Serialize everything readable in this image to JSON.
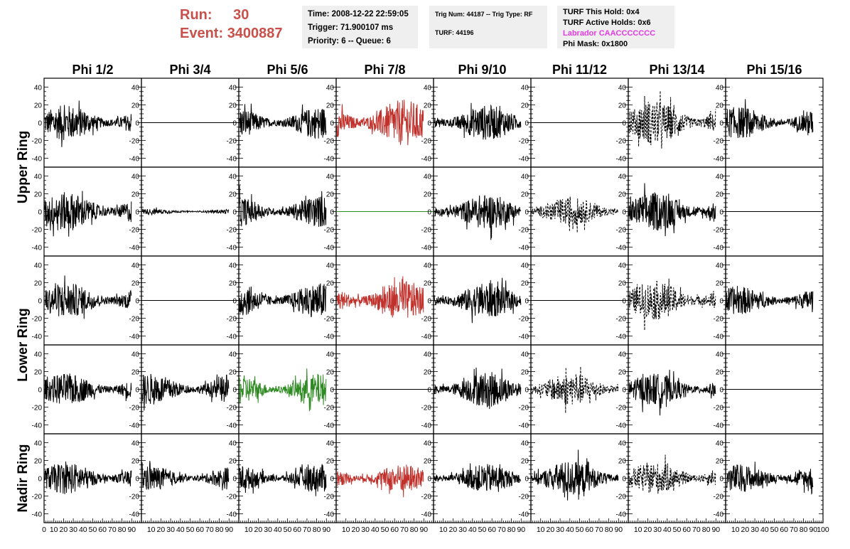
{
  "header": {
    "run_label": "Run:",
    "run_value": "30",
    "event_label": "Event:",
    "event_value": "3400887",
    "time": "Time: 2008-12-22 22:59:05",
    "trigger": "Trigger: 71.900107 ms",
    "priority": "Priority: 6 -- Queue: 6",
    "trig_num": "Trig Num: 44187 -- Trig Type: RF",
    "turf": "TURF: 44196",
    "turf_this_hold": "TURF This Hold: 0x4",
    "turf_active_holds": "TURF Active Holds: 0x6",
    "labrador": "Labrador CAACCCCCCC",
    "phi_mask": "Phi Mask: 0x1800"
  },
  "colors": {
    "run_text": "#c9504a",
    "labrador_text": "#e53be5",
    "trace_black": "#000000",
    "trace_red": "#c0312b",
    "trace_green": "#2e8b22",
    "info_box_bg": "#efefef"
  },
  "chart_data": {
    "type": "line",
    "columns": [
      "Phi 1/2",
      "Phi 3/4",
      "Phi 5/6",
      "Phi 7/8",
      "Phi 9/10",
      "Phi 11/12",
      "Phi 13/14",
      "Phi 15/16"
    ],
    "ring_labels": [
      {
        "label": "Upper Ring",
        "rows": [
          0,
          1
        ]
      },
      {
        "label": "Lower Ring",
        "rows": [
          2,
          3
        ]
      },
      {
        "label": "Nadir Ring",
        "rows": [
          4
        ]
      }
    ],
    "xlim": [
      0,
      100
    ],
    "x_tick_labels": [
      "0",
      "10",
      "20",
      "30",
      "40",
      "50",
      "60",
      "70",
      "80",
      "90",
      "100"
    ],
    "ylim": [
      -50,
      50
    ],
    "y_tick_labels": [
      "-40",
      "-20",
      "0",
      "20",
      "40"
    ],
    "grid": false,
    "traces": [
      [
        {
          "style": "solid",
          "color": "black",
          "amplitude": 20
        },
        {
          "style": "flat",
          "color": "black",
          "amplitude": 0
        },
        {
          "style": "solid",
          "color": "black",
          "amplitude": 18
        },
        {
          "style": "solid",
          "color": "red",
          "amplitude": 26
        },
        {
          "style": "solid",
          "color": "black",
          "amplitude": 20
        },
        {
          "style": "flat",
          "color": "black",
          "amplitude": 0
        },
        {
          "style": "dashed",
          "color": "black",
          "amplitude": 24
        },
        {
          "style": "solid",
          "color": "black",
          "amplitude": 18
        }
      ],
      [
        {
          "style": "solid",
          "color": "black",
          "amplitude": 22
        },
        {
          "style": "solid",
          "color": "black",
          "amplitude": 3
        },
        {
          "style": "solid",
          "color": "black",
          "amplitude": 18
        },
        {
          "style": "flat",
          "color": "green",
          "amplitude": 0
        },
        {
          "style": "solid",
          "color": "black",
          "amplitude": 20
        },
        {
          "style": "dashed",
          "color": "black",
          "amplitude": 16
        },
        {
          "style": "solid",
          "color": "black",
          "amplitude": 22
        },
        {
          "style": "flat",
          "color": "black",
          "amplitude": 0
        }
      ],
      [
        {
          "style": "solid",
          "color": "black",
          "amplitude": 20
        },
        {
          "style": "flat",
          "color": "black",
          "amplitude": 0
        },
        {
          "style": "solid",
          "color": "black",
          "amplitude": 20
        },
        {
          "style": "solid",
          "color": "red",
          "amplitude": 22
        },
        {
          "style": "solid",
          "color": "black",
          "amplitude": 20
        },
        {
          "style": "flat",
          "color": "black",
          "amplitude": 0
        },
        {
          "style": "dashed",
          "color": "black",
          "amplitude": 22
        },
        {
          "style": "solid",
          "color": "black",
          "amplitude": 16
        }
      ],
      [
        {
          "style": "solid",
          "color": "black",
          "amplitude": 18
        },
        {
          "style": "solid",
          "color": "black",
          "amplitude": 18
        },
        {
          "style": "solid",
          "color": "green",
          "amplitude": 18
        },
        {
          "style": "flat",
          "color": "black",
          "amplitude": 0
        },
        {
          "style": "solid",
          "color": "black",
          "amplitude": 20
        },
        {
          "style": "dashed",
          "color": "black",
          "amplitude": 18
        },
        {
          "style": "solid",
          "color": "black",
          "amplitude": 18
        },
        {
          "style": "flat",
          "color": "black",
          "amplitude": 0
        }
      ],
      [
        {
          "style": "solid",
          "color": "black",
          "amplitude": 18
        },
        {
          "style": "solid",
          "color": "black",
          "amplitude": 14
        },
        {
          "style": "solid",
          "color": "black",
          "amplitude": 16
        },
        {
          "style": "solid",
          "color": "red",
          "amplitude": 16
        },
        {
          "style": "solid",
          "color": "black",
          "amplitude": 16
        },
        {
          "style": "solid",
          "color": "black",
          "amplitude": 20
        },
        {
          "style": "dashed",
          "color": "black",
          "amplitude": 18
        },
        {
          "style": "solid",
          "color": "black",
          "amplitude": 16
        }
      ]
    ]
  }
}
